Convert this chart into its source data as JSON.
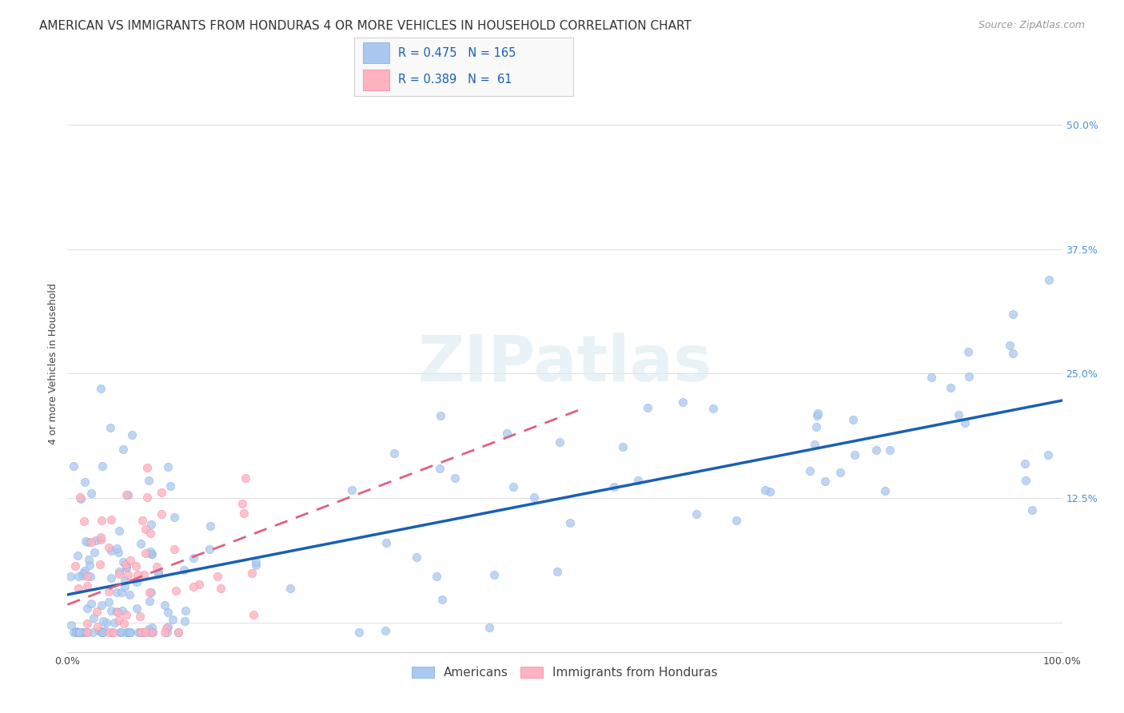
{
  "title": "AMERICAN VS IMMIGRANTS FROM HONDURAS 4 OR MORE VEHICLES IN HOUSEHOLD CORRELATION CHART",
  "source": "Source: ZipAtlas.com",
  "ylabel": "4 or more Vehicles in Household",
  "xlim": [
    0,
    1.0
  ],
  "ylim": [
    -0.03,
    0.55
  ],
  "xticks": [
    0.0,
    0.25,
    0.5,
    0.75,
    1.0
  ],
  "xticklabels": [
    "0.0%",
    "",
    "",
    "",
    "100.0%"
  ],
  "yticks": [
    0.0,
    0.125,
    0.25,
    0.375,
    0.5
  ],
  "yticklabels": [
    "",
    "12.5%",
    "25.0%",
    "37.5%",
    "50.0%"
  ],
  "americans_R": 0.475,
  "americans_N": 165,
  "honduras_R": 0.389,
  "honduras_N": 61,
  "americans_color": "#aac8f0",
  "americans_edge_color": "#7aaae0",
  "americans_line_color": "#1a5fb4",
  "honduras_color": "#ffb3c0",
  "honduras_edge_color": "#f080a0",
  "honduras_line_color": "#e06080",
  "background_color": "#ffffff",
  "watermark": "ZIPatlas",
  "title_fontsize": 11,
  "source_fontsize": 9,
  "axis_label_fontsize": 9,
  "tick_fontsize": 9,
  "legend_fontsize": 10,
  "am_intercept": 0.028,
  "am_slope": 0.195,
  "am_noise": 0.065,
  "hn_intercept": 0.018,
  "hn_slope": 0.38,
  "hn_noise": 0.055,
  "seed_am": 42,
  "seed_hn": 17
}
